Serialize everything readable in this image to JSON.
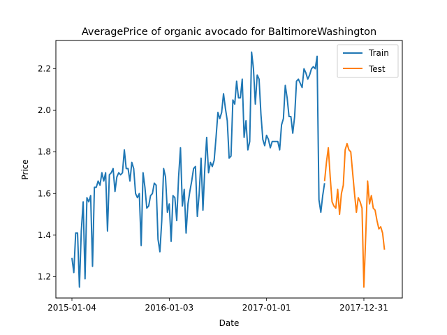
{
  "chart_data": {
    "type": "line",
    "title": "AveragePrice of organic avocado for BaltimoreWashington",
    "xlabel": "Date",
    "ylabel": "Price",
    "x_start": "2015-01-04",
    "x_step_days": 7,
    "x_ticks": [
      "2015-01-04",
      "2016-01-03",
      "2017-01-01",
      "2017-12-31"
    ],
    "x_tick_positions_weeks": [
      0,
      52,
      104,
      156
    ],
    "ylim": [
      1.1,
      2.33
    ],
    "y_ticks": [
      1.2,
      1.4,
      1.6,
      1.8,
      2.0,
      2.2
    ],
    "grid": false,
    "legend_position": "top-right",
    "series": [
      {
        "name": "Train",
        "color": "#1f77b4",
        "start_week": 0,
        "values": [
          1.29,
          1.22,
          1.41,
          1.41,
          1.15,
          1.42,
          1.56,
          1.19,
          1.58,
          1.56,
          1.59,
          1.25,
          1.63,
          1.63,
          1.66,
          1.64,
          1.7,
          1.66,
          1.7,
          1.42,
          1.69,
          1.7,
          1.72,
          1.61,
          1.68,
          1.7,
          1.69,
          1.7,
          1.81,
          1.72,
          1.72,
          1.66,
          1.75,
          1.72,
          1.6,
          1.58,
          1.6,
          1.35,
          1.7,
          1.63,
          1.53,
          1.54,
          1.59,
          1.6,
          1.65,
          1.64,
          1.38,
          1.32,
          1.47,
          1.72,
          1.68,
          1.51,
          1.55,
          1.37,
          1.59,
          1.58,
          1.47,
          1.68,
          1.82,
          1.54,
          1.62,
          1.41,
          1.55,
          1.61,
          1.66,
          1.72,
          1.73,
          1.49,
          1.6,
          1.77,
          1.52,
          1.72,
          1.87,
          1.7,
          1.75,
          1.73,
          1.76,
          1.87,
          1.99,
          1.96,
          1.99,
          2.08,
          2.01,
          1.95,
          1.77,
          1.78,
          2.05,
          2.03,
          2.14,
          2.06,
          2.06,
          2.15,
          1.87,
          1.95,
          1.81,
          1.85,
          2.28,
          2.2,
          2.03,
          2.17,
          2.15,
          1.98,
          1.86,
          1.83,
          1.88,
          1.86,
          1.82,
          1.85,
          1.85,
          1.85,
          1.85,
          1.81,
          1.93,
          1.96,
          2.12,
          2.06,
          1.97,
          1.97,
          1.89,
          1.97,
          2.14,
          2.15,
          2.13,
          2.11,
          2.2,
          2.18,
          2.15,
          2.17,
          2.2,
          2.21,
          2.2,
          2.26,
          1.57,
          1.51,
          1.59,
          1.65
        ]
      },
      {
        "name": "Test",
        "color": "#ff7f0e",
        "start_week": 135,
        "values": [
          1.66,
          1.75,
          1.82,
          1.68,
          1.56,
          1.54,
          1.53,
          1.62,
          1.5,
          1.6,
          1.64,
          1.81,
          1.84,
          1.81,
          1.8,
          1.7,
          1.6,
          1.51,
          1.58,
          1.56,
          1.53,
          1.15,
          1.4,
          1.66,
          1.55,
          1.59,
          1.53,
          1.52,
          1.47,
          1.43,
          1.44,
          1.41,
          1.33
        ]
      }
    ]
  }
}
